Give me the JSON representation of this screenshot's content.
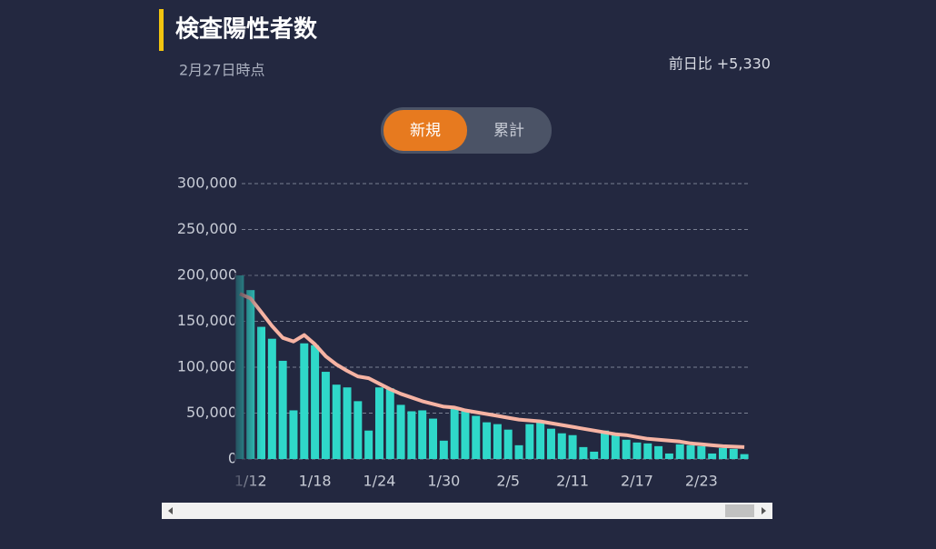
{
  "header": {
    "title": "検査陽性者数",
    "subtitle": "2月27日時点",
    "change": "前日比 +5,330"
  },
  "toggle": [
    "新規",
    "累計"
  ],
  "chart_data": {
    "type": "bar",
    "categories": [
      null,
      "1/12",
      null,
      null,
      null,
      null,
      null,
      "1/18",
      null,
      null,
      null,
      null,
      null,
      "1/24",
      null,
      null,
      null,
      null,
      null,
      "1/30",
      null,
      null,
      null,
      null,
      null,
      "2/5",
      null,
      null,
      null,
      null,
      null,
      "2/11",
      null,
      null,
      null,
      null,
      null,
      "2/17",
      null,
      null,
      null,
      null,
      null,
      "2/23",
      null,
      null,
      null,
      null
    ],
    "series": [
      {
        "color": "#2fd8c9",
        "values": [
          200000,
          184000,
          144000,
          131000,
          107000,
          53000,
          126000,
          124000,
          95000,
          81000,
          78000,
          63000,
          31000,
          78000,
          77000,
          59000,
          52000,
          53000,
          44000,
          20000,
          55000,
          54000,
          47000,
          40000,
          38000,
          32000,
          15000,
          38000,
          41000,
          33000,
          28000,
          26000,
          13000,
          8000,
          31000,
          28000,
          21000,
          18000,
          17000,
          14000,
          6000,
          16000,
          15000,
          14000,
          6000,
          12000,
          11000,
          5330
        ]
      },
      {
        "type": "line",
        "color": "#f6b3a3",
        "values": [
          180000,
          175000,
          160000,
          145000,
          132000,
          128000,
          135000,
          125000,
          112000,
          103000,
          96000,
          90000,
          88000,
          82000,
          76000,
          71000,
          67000,
          63000,
          60000,
          57000,
          56000,
          53000,
          51000,
          49000,
          47000,
          45000,
          43000,
          42000,
          41000,
          39000,
          37000,
          35000,
          33000,
          31000,
          29000,
          27000,
          26000,
          24000,
          22000,
          21000,
          20000,
          19000,
          17000,
          16000,
          15000,
          14000,
          13500,
          13000
        ]
      }
    ],
    "ylim": [
      0,
      300000
    ],
    "yticks": [
      0,
      {
        "value": 50000,
        "label": "50,000"
      },
      {
        "value": 100000,
        "label": "100,000"
      },
      {
        "value": 150000,
        "label": "150,000"
      },
      {
        "value": 200000,
        "label": "200,000"
      },
      {
        "value": 250000,
        "label": "250,000"
      },
      {
        "value": 300000,
        "label": "300,000"
      }
    ],
    "grid": true
  }
}
